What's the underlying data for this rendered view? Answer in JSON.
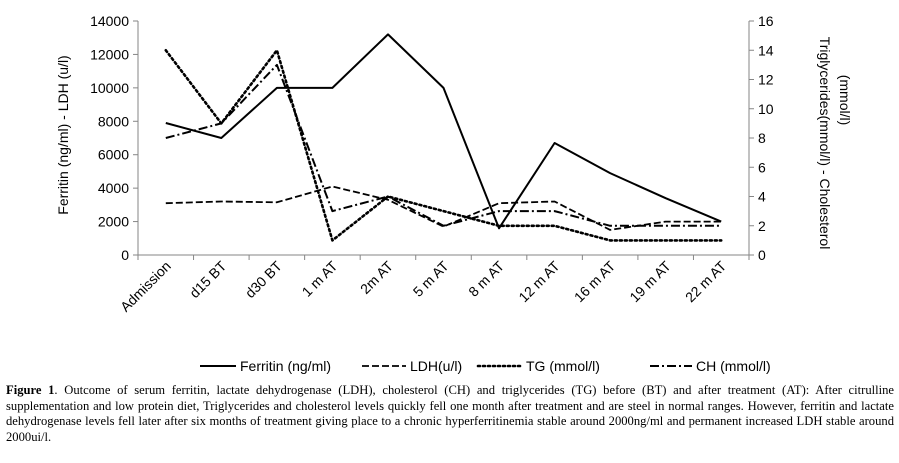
{
  "chart_data": {
    "type": "line",
    "categories": [
      "Admission",
      "d15 BT",
      "d30 BT",
      "1 m AT",
      "2m AT",
      "5 m AT",
      "8 m AT",
      "12 m AT",
      "16 m AT",
      "19 m AT",
      "22 m AT"
    ],
    "left_axis": {
      "label": "Ferritin (ng/ml) - LDH (u/l)",
      "ylim": [
        0,
        14000
      ],
      "ticks": [
        0,
        2000,
        4000,
        6000,
        8000,
        10000,
        12000,
        14000
      ]
    },
    "right_axis": {
      "label_line1": "Triglycerides(mmol/l) - Cholesterol",
      "label_line2": "(mmol/l)",
      "ylim": [
        0,
        16
      ],
      "ticks": [
        0,
        2,
        4,
        6,
        8,
        10,
        12,
        14,
        16
      ]
    },
    "series": [
      {
        "name": "Ferritin (ng/ml)",
        "axis": "left",
        "style": "solid",
        "values": [
          7900,
          7000,
          10000,
          10000,
          13200,
          10000,
          1600,
          6700,
          4900,
          3400,
          2000
        ]
      },
      {
        "name": "LDH(u/l)",
        "axis": "left",
        "style": "dashed",
        "values": [
          3100,
          3200,
          3150,
          4100,
          3300,
          1700,
          3100,
          3200,
          1500,
          2000,
          2000
        ]
      },
      {
        "name": "TG (mmol/l)",
        "axis": "right",
        "style": "dotted",
        "values": [
          14,
          9,
          14,
          1,
          4,
          3,
          2,
          2,
          1,
          1,
          1
        ]
      },
      {
        "name": "CH (mmol/l)",
        "axis": "right",
        "style": "dashdot",
        "values": [
          8,
          9,
          13,
          3,
          4,
          2,
          3,
          3,
          2,
          2,
          2
        ]
      }
    ]
  },
  "caption": {
    "label": "Figure 1",
    "text": ". Outcome of serum ferritin, lactate dehydrogenase (LDH), cholesterol (CH) and triglycerides (TG) before (BT) and after treatment (AT): After citrulline supplementation and low protein diet, Triglycerides and cholesterol levels quickly fell one month after treatment and are steel in normal ranges. However, ferritin and lactate dehydrogenase levels fell later after six months of treatment giving place to a chronic hyperferritinemia stable around 2000ng/ml and permanent increased LDH stable around 2000ui/l."
  }
}
